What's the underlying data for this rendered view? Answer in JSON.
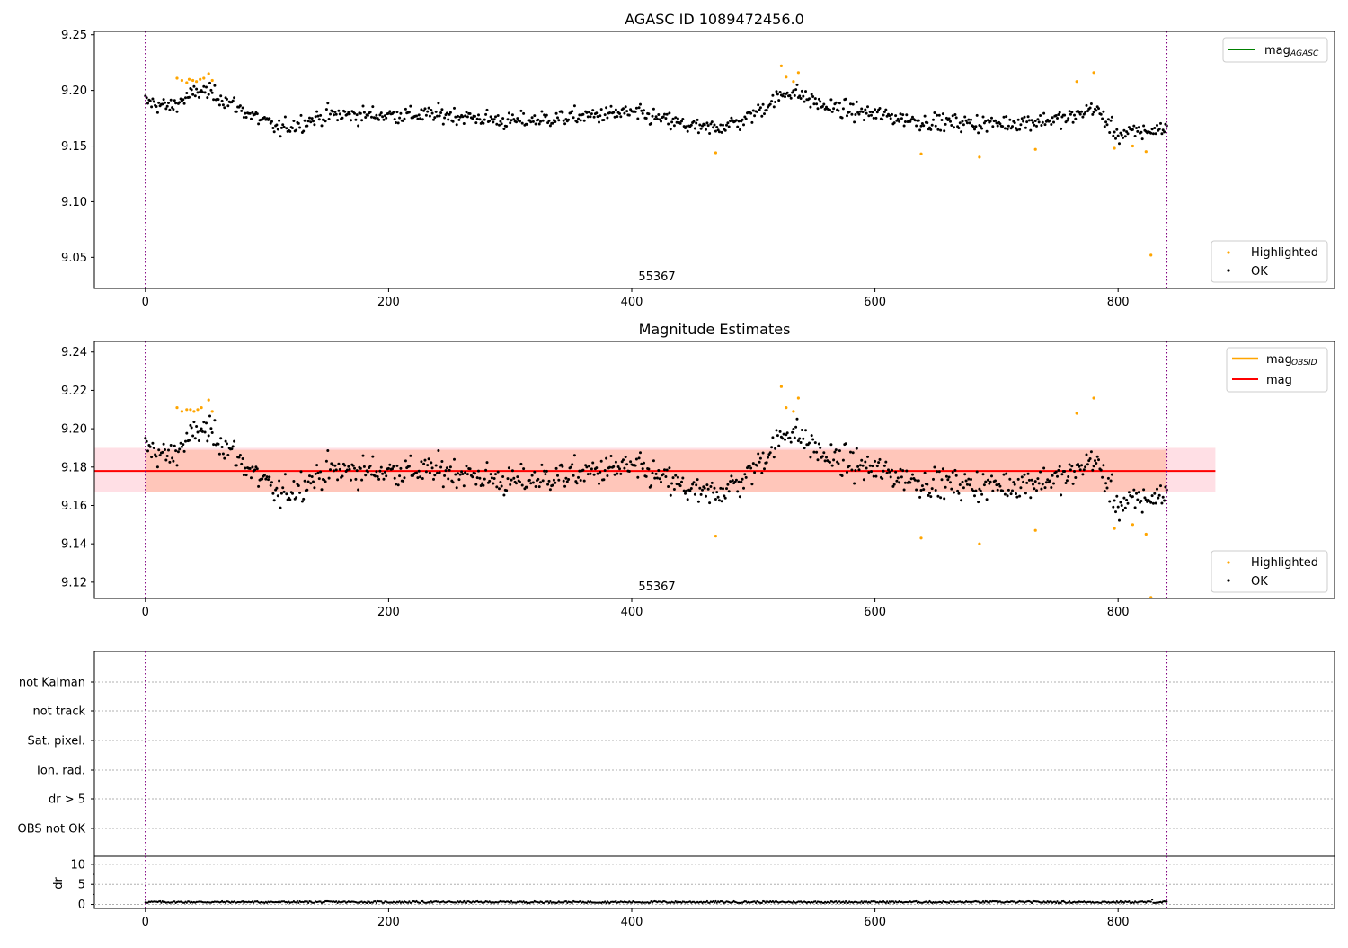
{
  "colors": {
    "ok": "#000000",
    "highlighted": "#ffa500",
    "agasc_line": "#008000",
    "obsid_line": "#ffa500",
    "mag_line": "#ff0000",
    "band_outer": "#ffc0cb",
    "band_inner": "#ffb48c",
    "obs_boundary": "#800080",
    "grid": "#b0b0b0"
  },
  "chart_data": [
    {
      "type": "scatter",
      "title": "AGASC ID 1089472456.0",
      "ylim": [
        9.022,
        9.253
      ],
      "xlim": [
        -42,
        978
      ],
      "xticks": [
        "0",
        "200",
        "400",
        "600",
        "800"
      ],
      "xtick_values": [
        0,
        200,
        400,
        600,
        800
      ],
      "yticks": [
        "9.05",
        "9.10",
        "9.15",
        "9.20",
        "9.25"
      ],
      "ytick_values": [
        9.05,
        9.1,
        9.15,
        9.2,
        9.25
      ],
      "obs_boundaries": [
        0,
        840
      ],
      "annotation": {
        "text": "55367",
        "x": 420,
        "y": 9.03
      },
      "lines_legend": [
        {
          "label": "mag",
          "sub": "AGASC",
          "color": "#008000"
        }
      ],
      "points_legend": [
        "Highlighted",
        "OK"
      ],
      "highlighted_points": [
        [
          26,
          9.211
        ],
        [
          30,
          9.209
        ],
        [
          34,
          9.207
        ],
        [
          36,
          9.21
        ],
        [
          39,
          9.209
        ],
        [
          42,
          9.208
        ],
        [
          45,
          9.21
        ],
        [
          48,
          9.211
        ],
        [
          52,
          9.215
        ],
        [
          55,
          9.209
        ],
        [
          523,
          9.222
        ],
        [
          527,
          9.212
        ],
        [
          533,
          9.208
        ],
        [
          537,
          9.216
        ],
        [
          469,
          9.144
        ],
        [
          638,
          9.143
        ],
        [
          686,
          9.14
        ],
        [
          732,
          9.147
        ],
        [
          766,
          9.208
        ],
        [
          780,
          9.216
        ],
        [
          797,
          9.148
        ],
        [
          812,
          9.15
        ],
        [
          823,
          9.145
        ],
        [
          827,
          9.052
        ]
      ]
    },
    {
      "type": "scatter",
      "title": "Magnitude Estimates",
      "ylim": [
        9.1115,
        9.2455
      ],
      "xlim": [
        -42,
        978
      ],
      "xticks": [
        "0",
        "200",
        "400",
        "600",
        "800"
      ],
      "xtick_values": [
        0,
        200,
        400,
        600,
        800
      ],
      "yticks": [
        "9.12",
        "9.14",
        "9.16",
        "9.18",
        "9.20",
        "9.22",
        "9.24"
      ],
      "ytick_values": [
        9.12,
        9.14,
        9.16,
        9.18,
        9.2,
        9.22,
        9.24
      ],
      "obs_boundaries": [
        0,
        840
      ],
      "mag": 9.178,
      "band_outer": {
        "x": [
          -42,
          880
        ],
        "y": [
          9.167,
          9.19
        ]
      },
      "band_inner": {
        "x": [
          0,
          840
        ],
        "y": [
          9.167,
          9.189
        ]
      },
      "annotation": {
        "text": "55367",
        "x": 420,
        "y": 9.1145
      },
      "lines_legend": [
        {
          "label": "mag",
          "sub": "OBSID",
          "color": "#ffa500"
        },
        {
          "label": "mag",
          "sub": "",
          "color": "#ff0000"
        }
      ],
      "points_legend": [
        "Highlighted",
        "OK"
      ],
      "highlighted_points": [
        [
          26,
          9.211
        ],
        [
          30,
          9.209
        ],
        [
          34,
          9.21
        ],
        [
          37,
          9.21
        ],
        [
          40,
          9.209
        ],
        [
          43,
          9.21
        ],
        [
          46,
          9.211
        ],
        [
          52,
          9.215
        ],
        [
          55,
          9.209
        ],
        [
          523,
          9.222
        ],
        [
          527,
          9.211
        ],
        [
          533,
          9.209
        ],
        [
          537,
          9.216
        ],
        [
          469,
          9.144
        ],
        [
          638,
          9.143
        ],
        [
          686,
          9.14
        ],
        [
          732,
          9.147
        ],
        [
          766,
          9.208
        ],
        [
          780,
          9.216
        ],
        [
          797,
          9.148
        ],
        [
          812,
          9.15
        ],
        [
          823,
          9.145
        ],
        [
          827,
          9.112
        ]
      ]
    },
    {
      "type": "scatter",
      "ylabel": "dr",
      "ylim": [
        -1,
        12
      ],
      "xlim": [
        -42,
        978
      ],
      "xticks": [
        "0",
        "200",
        "400",
        "600",
        "800"
      ],
      "xtick_values": [
        0,
        200,
        400,
        600,
        800
      ],
      "yticks": [
        "0",
        "5",
        "10"
      ],
      "ytick_values": [
        0,
        5,
        10
      ],
      "obs_boundaries": [
        0,
        840
      ],
      "flags": [
        "not Kalman",
        "not track",
        "Sat. pixel.",
        "Ion. rad.",
        "dr > 5",
        "OBS not OK"
      ]
    }
  ]
}
